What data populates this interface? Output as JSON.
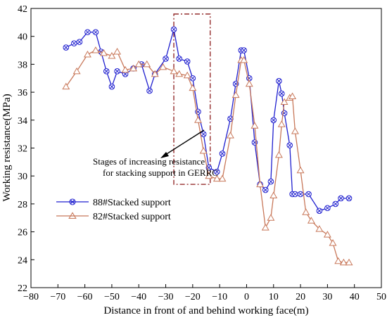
{
  "chart_data": {
    "type": "line",
    "xlabel": "Distance in front of and behind working face(m)",
    "ylabel": "Working resistance(MPa)",
    "xlim": [
      -80,
      50
    ],
    "ylim": [
      22,
      42
    ],
    "xticks": [
      -80,
      -70,
      -60,
      -50,
      -40,
      -30,
      -20,
      -10,
      0,
      10,
      20,
      30,
      40,
      50
    ],
    "yticks": [
      22,
      24,
      26,
      28,
      30,
      32,
      34,
      36,
      38,
      40,
      42
    ],
    "grid": false,
    "legend_position": "lower-left",
    "annotation": {
      "lines": [
        "Stages of increasing resistance",
        "for stacking support in GERRC"
      ],
      "highlight_x_range": [
        -27,
        -13.5
      ],
      "highlight_y_range": [
        29.4,
        41.6
      ]
    },
    "series": [
      {
        "name": "88#Stacked support",
        "color": "#1f1fcf",
        "marker": "circle-x",
        "x": [
          -67,
          -64,
          -62,
          -59,
          -56,
          -54,
          -52,
          -50,
          -48,
          -45,
          -42,
          -39,
          -36,
          -34,
          -30,
          -27,
          -25,
          -22,
          -20,
          -18,
          -16,
          -14,
          -11,
          -9,
          -6,
          -4,
          -2,
          -1,
          1,
          3,
          5,
          7,
          9,
          10,
          12,
          13,
          14,
          16,
          17,
          18,
          20,
          23,
          27,
          30,
          33,
          35,
          38
        ],
        "values": [
          39.2,
          39.5,
          39.6,
          40.3,
          40.3,
          38.9,
          37.5,
          36.4,
          37.5,
          37.3,
          37.7,
          38.0,
          36.1,
          37.3,
          38.4,
          40.5,
          38.4,
          38.2,
          37.0,
          34.6,
          33.0,
          30.6,
          30.3,
          31.6,
          34.1,
          36.6,
          39.0,
          39.0,
          37.0,
          32.4,
          29.4,
          29.0,
          29.6,
          34.0,
          36.8,
          35.9,
          34.5,
          32.2,
          28.7,
          28.7,
          28.7,
          28.7,
          27.5,
          27.7,
          28.0,
          28.4,
          28.4
        ]
      },
      {
        "name": "82#Stacked support",
        "color": "#c8785a",
        "marker": "triangle",
        "x": [
          -67,
          -63,
          -59,
          -56,
          -53,
          -50,
          -48,
          -45,
          -42,
          -40,
          -37,
          -34,
          -31,
          -27,
          -25,
          -22,
          -20,
          -18,
          -16,
          -14,
          -11,
          -9,
          -6,
          -4,
          -2,
          -1,
          1,
          3,
          5,
          7,
          9,
          10,
          12,
          13,
          14,
          16,
          17,
          18,
          20,
          22,
          24,
          27,
          30,
          32,
          34,
          36,
          38
        ],
        "values": [
          36.4,
          37.5,
          38.7,
          39.0,
          38.8,
          38.6,
          38.9,
          37.6,
          37.7,
          38.0,
          38.0,
          37.3,
          37.8,
          37.5,
          37.3,
          37.2,
          36.3,
          34.0,
          31.8,
          30.0,
          29.8,
          29.8,
          32.9,
          35.8,
          38.3,
          38.3,
          36.6,
          33.6,
          29.4,
          26.3,
          27.0,
          28.6,
          31.5,
          33.7,
          35.3,
          35.6,
          35.7,
          33.2,
          30.4,
          27.4,
          26.8,
          26.2,
          25.8,
          25.2,
          23.9,
          23.8,
          23.8
        ]
      }
    ]
  }
}
